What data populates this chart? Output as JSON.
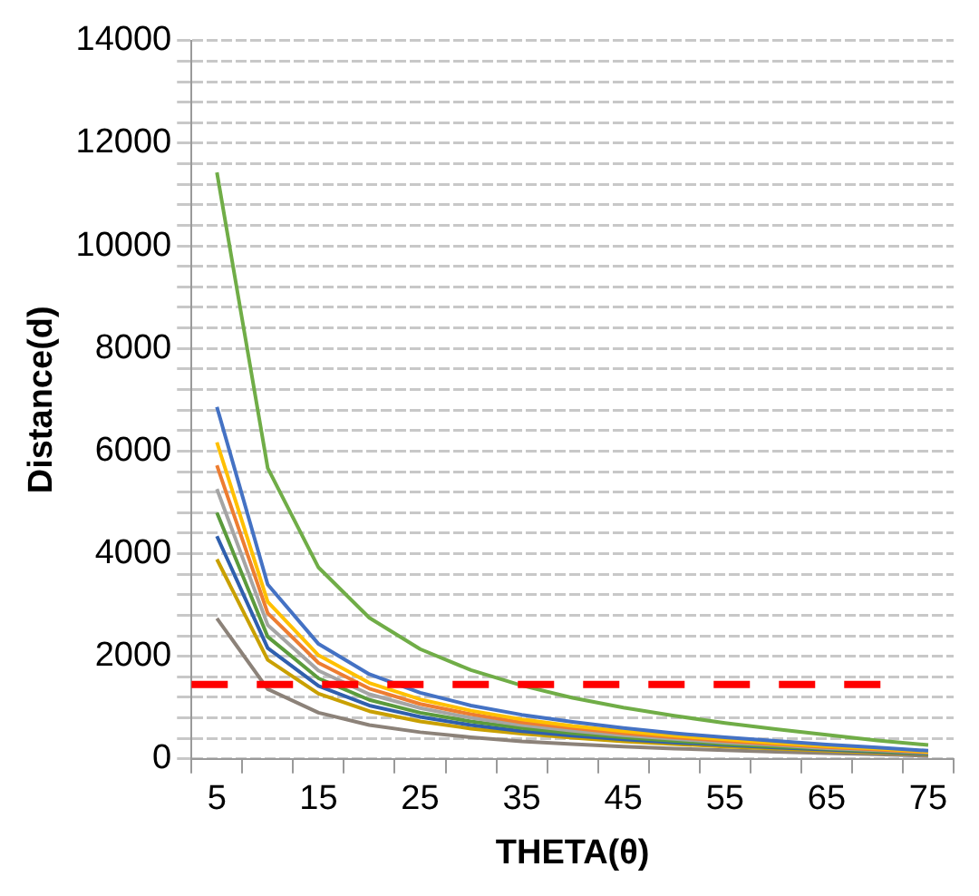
{
  "chart_data": {
    "type": "line",
    "xlabel": "THETA(θ)",
    "ylabel": "Distance(d)",
    "categories": [
      "5",
      null,
      "15",
      null,
      "25",
      null,
      "35",
      null,
      "45",
      null,
      "55",
      null,
      "65",
      null,
      "75"
    ],
    "series": [
      {
        "color": "#70ad47",
        "values": [
          11430,
          5670,
          3730,
          2750,
          2140,
          1730,
          1430,
          1190,
          1000,
          840,
          700,
          580,
          470,
          360,
          270
        ]
      },
      {
        "color": "#4472c4",
        "values": [
          6860,
          3400,
          2240,
          1650,
          1290,
          1040,
          860,
          720,
          600,
          500,
          420,
          350,
          280,
          220,
          160
        ]
      },
      {
        "color": "#ffc000",
        "values": [
          6170,
          3060,
          2020,
          1480,
          1160,
          940,
          770,
          640,
          540,
          450,
          380,
          310,
          250,
          200,
          140
        ]
      },
      {
        "color": "#ed7d31",
        "values": [
          5720,
          2840,
          1870,
          1370,
          1070,
          870,
          710,
          600,
          500,
          420,
          350,
          290,
          230,
          180,
          130
        ]
      },
      {
        "color": "#a5a5a5",
        "values": [
          5260,
          2610,
          1720,
          1260,
          990,
          800,
          660,
          550,
          460,
          390,
          320,
          270,
          210,
          170,
          120
        ]
      },
      {
        "color": "#5b9b3c",
        "values": [
          4800,
          2380,
          1570,
          1150,
          900,
          730,
          600,
          500,
          420,
          350,
          290,
          240,
          200,
          150,
          110
        ]
      },
      {
        "color": "#2f5fae",
        "values": [
          4340,
          2160,
          1420,
          1040,
          820,
          660,
          540,
          450,
          380,
          320,
          270,
          220,
          180,
          140,
          100
        ]
      },
      {
        "color": "#c9a000",
        "values": [
          3890,
          1930,
          1270,
          930,
          730,
          590,
          490,
          410,
          340,
          290,
          240,
          200,
          160,
          120,
          90
        ]
      },
      {
        "color": "#8c8279",
        "values": [
          2740,
          1360,
          900,
          660,
          520,
          420,
          340,
          290,
          240,
          200,
          170,
          140,
          110,
          90,
          60
        ]
      }
    ],
    "ylim": [
      0,
      14000
    ],
    "yticks": [
      0,
      {
        "value": 400,
        "label": null
      },
      {
        "value": 800,
        "label": null
      },
      {
        "value": 1200,
        "label": null
      },
      {
        "value": 1600,
        "label": null
      },
      2000,
      {
        "value": 2400,
        "label": null
      },
      {
        "value": 2800,
        "label": null
      },
      {
        "value": 3200,
        "label": null
      },
      {
        "value": 3600,
        "label": null
      },
      4000,
      {
        "value": 4400,
        "label": null
      },
      {
        "value": 4800,
        "label": null
      },
      {
        "value": 5200,
        "label": null
      },
      {
        "value": 5600,
        "label": null
      },
      6000,
      {
        "value": 6400,
        "label": null
      },
      {
        "value": 6800,
        "label": null
      },
      {
        "value": 7200,
        "label": null
      },
      {
        "value": 7600,
        "label": null
      },
      8000,
      {
        "value": 8400,
        "label": null
      },
      {
        "value": 8800,
        "label": null
      },
      {
        "value": 9200,
        "label": null
      },
      {
        "value": 9600,
        "label": null
      },
      10000,
      {
        "value": 10400,
        "label": null
      },
      {
        "value": 10800,
        "label": null
      },
      {
        "value": 11200,
        "label": null
      },
      {
        "value": 11600,
        "label": null
      },
      12000,
      {
        "value": 12400,
        "label": null
      },
      {
        "value": 12800,
        "label": null
      },
      {
        "value": 13200,
        "label": null
      },
      {
        "value": 13600,
        "label": null
      },
      14000
    ],
    "grid": "y",
    "legend": false,
    "marker": "none",
    "line_style": "solid",
    "ref_lines": [
      {
        "axis": "y",
        "value": 1450,
        "color": "#ff0000",
        "line_style": "dashed"
      }
    ]
  }
}
